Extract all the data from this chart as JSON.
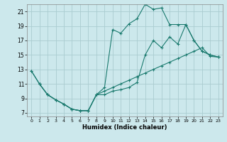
{
  "title": "",
  "xlabel": "Humidex (Indice chaleur)",
  "bg_color": "#cce8ec",
  "grid_color": "#aaccd0",
  "line_color": "#1a7a6e",
  "xlim": [
    -0.5,
    23.5
  ],
  "ylim": [
    6.5,
    22
  ],
  "xticks": [
    0,
    1,
    2,
    3,
    4,
    5,
    6,
    7,
    8,
    9,
    10,
    11,
    12,
    13,
    14,
    15,
    16,
    17,
    18,
    19,
    20,
    21,
    22,
    23
  ],
  "yticks": [
    7,
    9,
    11,
    13,
    15,
    17,
    19,
    21
  ],
  "lines": [
    {
      "x": [
        0,
        1,
        2,
        3,
        4,
        5,
        6,
        7,
        8,
        9,
        10,
        11,
        12,
        13,
        14,
        15,
        16,
        17,
        18,
        19,
        20,
        21,
        22,
        23
      ],
      "y": [
        12.8,
        11.0,
        9.5,
        8.8,
        8.2,
        7.5,
        7.3,
        7.3,
        9.5,
        10.0,
        10.5,
        11.0,
        11.5,
        12.0,
        12.5,
        13.0,
        13.5,
        14.0,
        14.5,
        15.0,
        15.5,
        16.0,
        14.8,
        14.7
      ]
    },
    {
      "x": [
        0,
        1,
        2,
        3,
        4,
        5,
        6,
        7,
        8,
        9,
        10,
        11,
        12,
        13,
        14,
        15,
        16,
        17,
        18,
        19,
        20,
        21,
        22,
        23
      ],
      "y": [
        12.8,
        11.0,
        9.5,
        8.8,
        8.2,
        7.5,
        7.3,
        7.3,
        9.5,
        10.5,
        18.5,
        18.0,
        19.3,
        20.0,
        22.0,
        21.3,
        21.5,
        19.2,
        19.2,
        19.2,
        17.0,
        15.5,
        15.0,
        14.7
      ]
    },
    {
      "x": [
        1,
        2,
        3,
        4,
        5,
        6,
        7,
        8,
        9,
        10,
        11,
        12,
        13,
        14,
        15,
        16,
        17,
        18,
        19,
        20,
        21,
        22,
        23
      ],
      "y": [
        11.0,
        9.5,
        8.8,
        8.2,
        7.5,
        7.3,
        7.3,
        9.5,
        9.5,
        10.0,
        10.2,
        10.5,
        11.2,
        15.0,
        17.0,
        16.0,
        17.5,
        16.5,
        19.2,
        17.0,
        15.5,
        15.0,
        14.7
      ]
    }
  ]
}
